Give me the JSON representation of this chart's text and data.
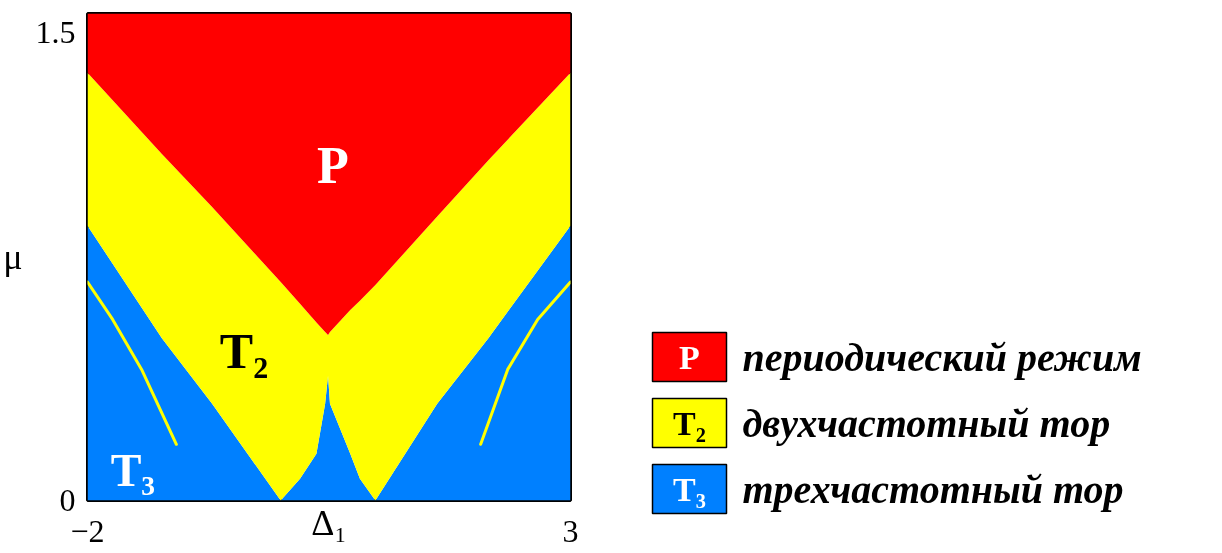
{
  "chart_data": {
    "type": "area",
    "stacked": true,
    "xlabel": "Δ₁",
    "ylabel": "μ",
    "xlim": [
      -2,
      3
    ],
    "ylim": [
      0,
      1.56
    ],
    "xticks": [
      {
        "value": -2,
        "label": "−2"
      },
      3
    ],
    "yticks": [
      0,
      1.5
    ],
    "legend": "right",
    "x": [
      -2,
      -1.23,
      -0.71,
      0,
      0.2,
      0.37,
      0.46,
      0.49,
      0.51,
      0.72,
      0.82,
      0.98,
      1.62,
      2.15,
      3
    ],
    "series": [
      {
        "name": "трехчастотный тор",
        "color": "#0080ff",
        "values": [
          0.88,
          0.52,
          0.31,
          0,
          0.07,
          0.15,
          0.31,
          0.4,
          0.31,
          0.15,
          0.07,
          0,
          0.31,
          0.52,
          0.88
        ]
      },
      {
        "name": "двухчастотный тор",
        "color": "#ffff00",
        "values": [
          0.49,
          0.59,
          0.63,
          0.7,
          0.56,
          0.42,
          0.23,
          0.13,
          0.23,
          0.46,
          0.57,
          0.69,
          0.6,
          0.57,
          0.49
        ]
      },
      {
        "name": "периодический режим",
        "color": "#ff0000",
        "values": [
          0.19,
          0.45,
          0.62,
          0.86,
          0.93,
          0.99,
          1.02,
          1.03,
          1.02,
          0.95,
          0.92,
          0.87,
          0.65,
          0.47,
          0.19
        ]
      },
      {
        "type": "line",
        "color": "#ffff00",
        "x": [
          -2,
          -1.74,
          -1.44,
          -1.08
        ],
        "values": [
          0.7,
          0.58,
          0.42,
          0.18
        ]
      },
      {
        "type": "line",
        "color": "#ffff00",
        "x": [
          2.07,
          2.35,
          2.66,
          3
        ],
        "values": [
          0.18,
          0.42,
          0.58,
          0.7
        ]
      }
    ],
    "annotations": [
      "P",
      "T₂",
      "T₃"
    ]
  }
}
